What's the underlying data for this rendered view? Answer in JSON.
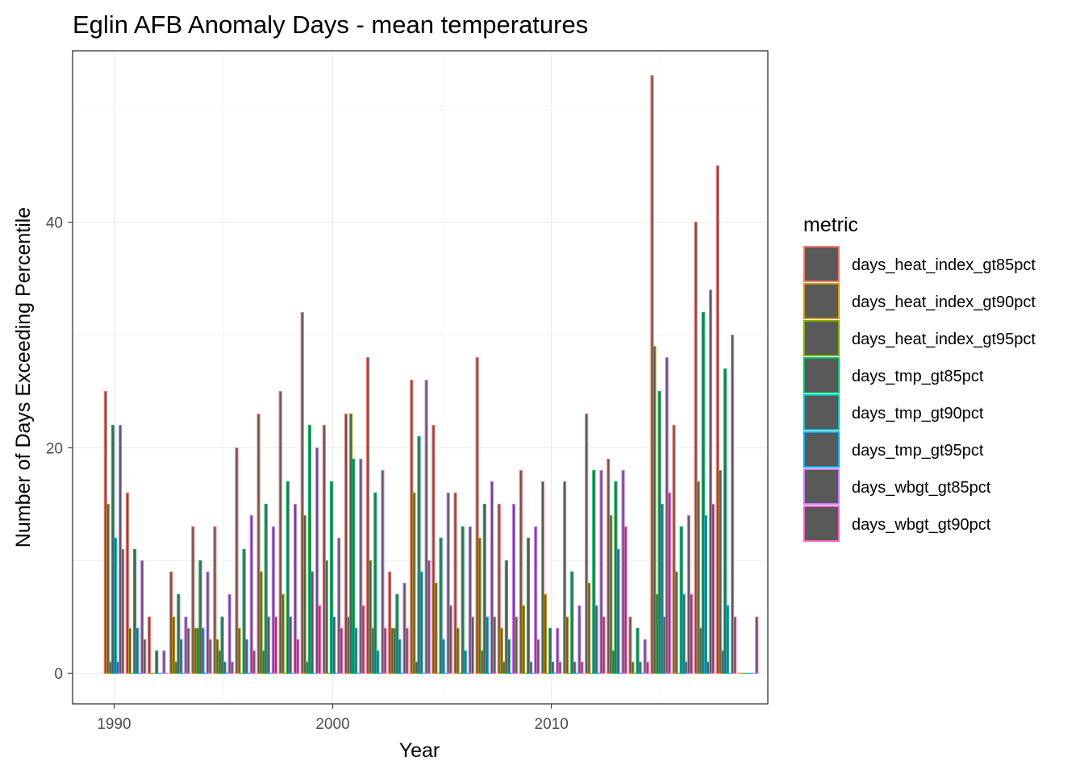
{
  "chart_data": {
    "type": "bar",
    "title": "Eglin AFB Anomaly Days - mean temperatures",
    "xlabel": "Year",
    "ylabel": "Number of Days Exceeding Percentile",
    "xlim": [
      1988.1,
      2019.9
    ],
    "ylim": [
      -2.7,
      55.2
    ],
    "x_ticks": [
      1990,
      2000,
      2010
    ],
    "y_ticks": [
      0,
      20,
      40
    ],
    "grid": true,
    "bar_fill": "#595959",
    "legend": {
      "title": "metric",
      "placement": "right"
    },
    "years": [
      1990,
      1991,
      1992,
      1993,
      1994,
      1995,
      1996,
      1997,
      1998,
      1999,
      2000,
      2001,
      2002,
      2003,
      2004,
      2005,
      2006,
      2007,
      2008,
      2009,
      2010,
      2011,
      2012,
      2013,
      2014,
      2015,
      2016,
      2017,
      2018,
      2019
    ],
    "series": [
      {
        "name": "days_heat_index_gt85pct",
        "color": "#F8766D",
        "values": [
          25,
          16,
          5,
          9,
          13,
          13,
          20,
          23,
          25,
          32,
          22,
          23,
          28,
          9,
          26,
          22,
          16,
          28,
          15,
          18,
          17,
          17,
          23,
          19,
          5,
          53,
          22,
          40,
          45,
          0
        ]
      },
      {
        "name": "days_heat_index_gt90pct",
        "color": "#CD9600",
        "values": [
          15,
          4,
          0,
          5,
          4,
          3,
          4,
          9,
          7,
          14,
          10,
          5,
          10,
          4,
          16,
          8,
          4,
          12,
          4,
          6,
          7,
          5,
          8,
          14,
          1,
          29,
          9,
          17,
          18,
          0
        ]
      },
      {
        "name": "days_heat_index_gt95pct",
        "color": "#7CAE00",
        "values": [
          1,
          0,
          0,
          1,
          4,
          2,
          0,
          2,
          0,
          1,
          0,
          23,
          4,
          4,
          1,
          0,
          0,
          2,
          1,
          0,
          0,
          0,
          0,
          2,
          0,
          7,
          0,
          4,
          2,
          0
        ]
      },
      {
        "name": "days_tmp_gt85pct",
        "color": "#00BE67",
        "values": [
          22,
          11,
          2,
          7,
          10,
          5,
          11,
          15,
          17,
          22,
          17,
          19,
          16,
          7,
          21,
          12,
          13,
          15,
          10,
          12,
          4,
          9,
          18,
          17,
          4,
          25,
          13,
          32,
          27,
          0
        ]
      },
      {
        "name": "days_tmp_gt90pct",
        "color": "#00BFC4",
        "values": [
          12,
          4,
          0,
          3,
          4,
          1,
          3,
          5,
          5,
          9,
          5,
          4,
          2,
          3,
          9,
          3,
          2,
          5,
          3,
          1,
          1,
          1,
          6,
          11,
          1,
          15,
          7,
          14,
          6,
          0
        ]
      },
      {
        "name": "days_tmp_gt95pct",
        "color": "#00A9FF",
        "values": [
          1,
          0,
          0,
          0,
          0,
          0,
          0,
          0,
          0,
          0,
          0,
          0,
          0,
          0,
          0,
          0,
          0,
          0,
          0,
          0,
          0,
          0,
          0,
          0,
          0,
          5,
          1,
          1,
          0,
          0
        ]
      },
      {
        "name": "days_wbgt_gt85pct",
        "color": "#C77CFF",
        "values": [
          22,
          10,
          2,
          5,
          9,
          7,
          14,
          13,
          15,
          20,
          12,
          19,
          18,
          8,
          26,
          16,
          13,
          17,
          15,
          13,
          4,
          6,
          18,
          18,
          3,
          28,
          14,
          34,
          30,
          0
        ]
      },
      {
        "name": "days_wbgt_gt90pct",
        "color": "#FF61CC",
        "values": [
          11,
          3,
          0,
          4,
          3,
          1,
          2,
          5,
          3,
          6,
          4,
          6,
          4,
          4,
          10,
          6,
          5,
          5,
          5,
          3,
          1,
          1,
          5,
          13,
          1,
          16,
          7,
          15,
          5,
          5
        ]
      }
    ]
  }
}
